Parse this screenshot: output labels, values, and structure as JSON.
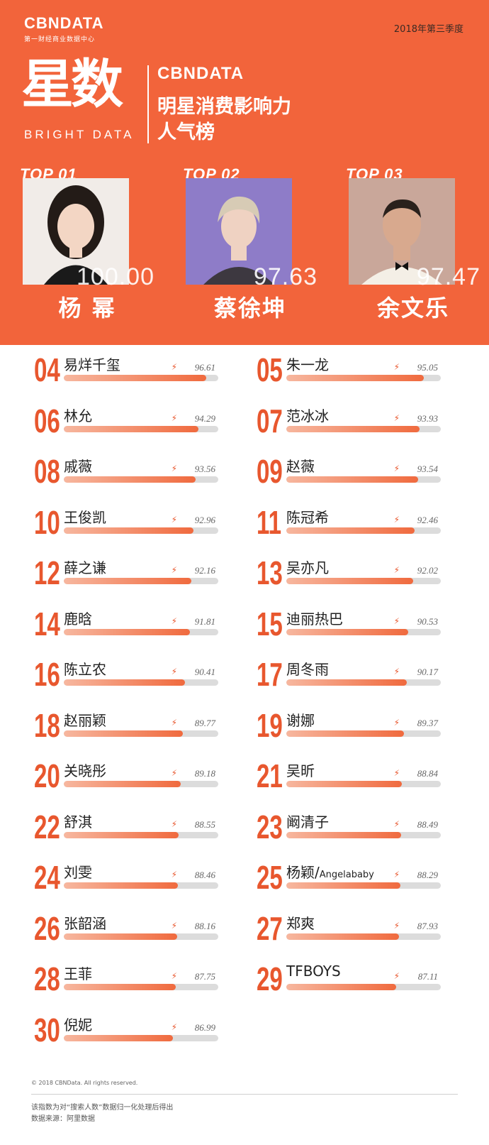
{
  "header": {
    "logo": "CBNDATA",
    "logo_sub": "第一财经商业数据中心",
    "period": "2018年第三季度",
    "big_title": "星数",
    "big_subtitle": "BRIGHT DATA",
    "brand": "CBNDATA",
    "title_line1": "明星消费影响力",
    "title_line2": "人气榜"
  },
  "colors": {
    "accent": "#f2643b",
    "number": "#e8572e",
    "track": "#dcdcdc"
  },
  "top3": [
    {
      "label": "TOP 01",
      "name": "杨  幂",
      "score": "100.00"
    },
    {
      "label": "TOP 02",
      "name": "蔡徐坤",
      "score": "97.63"
    },
    {
      "label": "TOP 03",
      "name": "余文乐",
      "score": "97.47"
    }
  ],
  "chart_data": {
    "type": "bar",
    "orientation": "horizontal",
    "title": "明星消费影响力人气榜",
    "items": [
      {
        "rank": "01",
        "name": "杨幂",
        "value": 100.0
      },
      {
        "rank": "02",
        "name": "蔡徐坤",
        "value": 97.63
      },
      {
        "rank": "03",
        "name": "余文乐",
        "value": 97.47
      },
      {
        "rank": "04",
        "name": "易烊千玺",
        "value": 96.61
      },
      {
        "rank": "05",
        "name": "朱一龙",
        "value": 95.05
      },
      {
        "rank": "06",
        "name": "林允",
        "value": 94.29
      },
      {
        "rank": "07",
        "name": "范冰冰",
        "value": 93.93
      },
      {
        "rank": "08",
        "name": "戚薇",
        "value": 93.56
      },
      {
        "rank": "09",
        "name": "赵薇",
        "value": 93.54
      },
      {
        "rank": "10",
        "name": "王俊凯",
        "value": 92.96
      },
      {
        "rank": "11",
        "name": "陈冠希",
        "value": 92.46
      },
      {
        "rank": "12",
        "name": "薛之谦",
        "value": 92.16
      },
      {
        "rank": "13",
        "name": "吴亦凡",
        "value": 92.02
      },
      {
        "rank": "14",
        "name": "鹿晗",
        "value": 91.81
      },
      {
        "rank": "15",
        "name": "迪丽热巴",
        "value": 90.53
      },
      {
        "rank": "16",
        "name": "陈立农",
        "value": 90.41
      },
      {
        "rank": "17",
        "name": "周冬雨",
        "value": 90.17
      },
      {
        "rank": "18",
        "name": "赵丽颖",
        "value": 89.77
      },
      {
        "rank": "19",
        "name": "谢娜",
        "value": 89.37
      },
      {
        "rank": "20",
        "name": "关晓彤",
        "value": 89.18
      },
      {
        "rank": "21",
        "name": "吴昕",
        "value": 88.84
      },
      {
        "rank": "22",
        "name": "舒淇",
        "value": 88.55
      },
      {
        "rank": "23",
        "name": "阚清子",
        "value": 88.49
      },
      {
        "rank": "24",
        "name": "刘雯",
        "value": 88.46
      },
      {
        "rank": "25",
        "name": "杨颖/Angelababy",
        "value": 88.29
      },
      {
        "rank": "26",
        "name": "张韶涵",
        "value": 88.16
      },
      {
        "rank": "27",
        "name": "郑爽",
        "value": 87.93
      },
      {
        "rank": "28",
        "name": "王菲",
        "value": 87.75
      },
      {
        "rank": "29",
        "name": "TFBOYS",
        "value": 87.11
      },
      {
        "rank": "30",
        "name": "倪妮",
        "value": 86.99
      }
    ],
    "xlim": [
      0,
      100
    ]
  },
  "footer": {
    "copyright": "© 2018 CBNData. All rights reserved.",
    "note": "该指数为对“搜索人数”数据归一化处理后得出",
    "source": "数据来源：阿里数据"
  }
}
